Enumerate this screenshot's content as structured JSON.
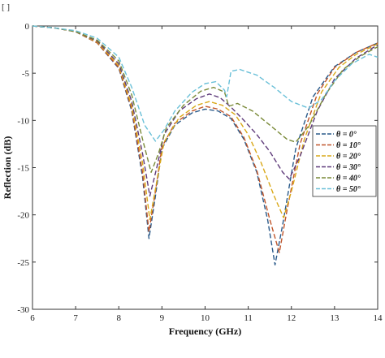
{
  "corner_mark": "[ ]",
  "chart_data": {
    "type": "line",
    "xlabel": "Frequency (GHz)",
    "ylabel": "Reflection (dB)",
    "xlim": [
      6,
      14
    ],
    "ylim": [
      -30,
      0
    ],
    "xticks": [
      6,
      7,
      8,
      9,
      10,
      11,
      12,
      13,
      14
    ],
    "yticks": [
      0,
      -5,
      -10,
      -15,
      -20,
      -25,
      -30
    ],
    "legend_position": "right",
    "grid": false,
    "series": [
      {
        "name": "θ = 0°",
        "color": "#2a5a8a",
        "points": [
          [
            6,
            0
          ],
          [
            6.5,
            -0.2
          ],
          [
            7,
            -0.6
          ],
          [
            7.5,
            -1.8
          ],
          [
            8,
            -4.5
          ],
          [
            8.3,
            -9
          ],
          [
            8.55,
            -16
          ],
          [
            8.7,
            -22.5
          ],
          [
            8.85,
            -18
          ],
          [
            9.0,
            -13
          ],
          [
            9.3,
            -10.5
          ],
          [
            9.7,
            -9.2
          ],
          [
            10.0,
            -8.8
          ],
          [
            10.3,
            -9
          ],
          [
            10.6,
            -9.8
          ],
          [
            10.9,
            -12
          ],
          [
            11.2,
            -15.5
          ],
          [
            11.45,
            -20.5
          ],
          [
            11.62,
            -25.3
          ],
          [
            11.8,
            -21
          ],
          [
            12.1,
            -13
          ],
          [
            12.5,
            -7.5
          ],
          [
            13,
            -4.3
          ],
          [
            13.5,
            -2.8
          ],
          [
            14,
            -1.8
          ]
        ]
      },
      {
        "name": "θ = 10°",
        "color": "#c0552a",
        "points": [
          [
            6,
            0
          ],
          [
            6.5,
            -0.2
          ],
          [
            7,
            -0.6
          ],
          [
            7.5,
            -1.8
          ],
          [
            8,
            -4.4
          ],
          [
            8.3,
            -8.8
          ],
          [
            8.55,
            -15.5
          ],
          [
            8.7,
            -21.8
          ],
          [
            8.85,
            -17.5
          ],
          [
            9.0,
            -12.8
          ],
          [
            9.3,
            -10.3
          ],
          [
            9.7,
            -9
          ],
          [
            10.0,
            -8.5
          ],
          [
            10.3,
            -8.8
          ],
          [
            10.6,
            -9.6
          ],
          [
            10.9,
            -11.8
          ],
          [
            11.2,
            -15.3
          ],
          [
            11.5,
            -20.5
          ],
          [
            11.72,
            -24
          ],
          [
            11.9,
            -19.5
          ],
          [
            12.2,
            -12.5
          ],
          [
            12.6,
            -7.2
          ],
          [
            13,
            -4.4
          ],
          [
            13.5,
            -2.8
          ],
          [
            14,
            -1.8
          ]
        ]
      },
      {
        "name": "θ = 20°",
        "color": "#d9a818",
        "points": [
          [
            6,
            0
          ],
          [
            6.5,
            -0.2
          ],
          [
            7,
            -0.6
          ],
          [
            7.5,
            -1.7
          ],
          [
            8,
            -4.2
          ],
          [
            8.3,
            -8.5
          ],
          [
            8.55,
            -14.5
          ],
          [
            8.72,
            -20.5
          ],
          [
            8.88,
            -16.5
          ],
          [
            9.05,
            -12.3
          ],
          [
            9.4,
            -9.7
          ],
          [
            9.8,
            -8.4
          ],
          [
            10.1,
            -8
          ],
          [
            10.4,
            -8.4
          ],
          [
            10.7,
            -9.4
          ],
          [
            11.0,
            -11.5
          ],
          [
            11.3,
            -14.5
          ],
          [
            11.6,
            -18
          ],
          [
            11.82,
            -20.3
          ],
          [
            12.0,
            -17.5
          ],
          [
            12.3,
            -12
          ],
          [
            12.7,
            -7
          ],
          [
            13.1,
            -4.4
          ],
          [
            13.5,
            -3
          ],
          [
            14,
            -1.9
          ]
        ]
      },
      {
        "name": "θ = 30°",
        "color": "#5e3a7a",
        "points": [
          [
            6,
            0
          ],
          [
            6.5,
            -0.2
          ],
          [
            7,
            -0.6
          ],
          [
            7.5,
            -1.6
          ],
          [
            8,
            -4
          ],
          [
            8.3,
            -8
          ],
          [
            8.55,
            -13.5
          ],
          [
            8.72,
            -18
          ],
          [
            8.88,
            -15
          ],
          [
            9.05,
            -11.5
          ],
          [
            9.4,
            -9
          ],
          [
            9.8,
            -7.7
          ],
          [
            10.1,
            -7.2
          ],
          [
            10.35,
            -7.6
          ],
          [
            10.6,
            -8.6
          ],
          [
            10.9,
            -10
          ],
          [
            11.2,
            -11.5
          ],
          [
            11.5,
            -13.3
          ],
          [
            11.8,
            -15.5
          ],
          [
            11.95,
            -16.2
          ],
          [
            12.2,
            -13.8
          ],
          [
            12.6,
            -9
          ],
          [
            13,
            -5.6
          ],
          [
            13.5,
            -3.4
          ],
          [
            14,
            -2
          ]
        ]
      },
      {
        "name": "θ = 40°",
        "color": "#7a8a38",
        "points": [
          [
            6,
            0
          ],
          [
            6.5,
            -0.2
          ],
          [
            7,
            -0.6
          ],
          [
            7.5,
            -1.5
          ],
          [
            8,
            -3.7
          ],
          [
            8.3,
            -7.3
          ],
          [
            8.55,
            -12
          ],
          [
            8.75,
            -15.5
          ],
          [
            8.92,
            -13.5
          ],
          [
            9.1,
            -10.8
          ],
          [
            9.5,
            -8.4
          ],
          [
            9.9,
            -6.9
          ],
          [
            10.2,
            -6.5
          ],
          [
            10.45,
            -7
          ],
          [
            10.55,
            -8.5
          ],
          [
            10.75,
            -8.2
          ],
          [
            11.1,
            -9
          ],
          [
            11.5,
            -10.5
          ],
          [
            11.9,
            -12
          ],
          [
            12.1,
            -12.3
          ],
          [
            12.4,
            -10.6
          ],
          [
            12.8,
            -7.2
          ],
          [
            13.2,
            -4.6
          ],
          [
            13.6,
            -3.2
          ],
          [
            14,
            -2.2
          ]
        ]
      },
      {
        "name": "θ = 50°",
        "color": "#6ac0d8",
        "points": [
          [
            6,
            0
          ],
          [
            6.5,
            -0.2
          ],
          [
            7,
            -0.5
          ],
          [
            7.5,
            -1.3
          ],
          [
            8,
            -3.3
          ],
          [
            8.3,
            -6.5
          ],
          [
            8.6,
            -10.5
          ],
          [
            8.85,
            -12.2
          ],
          [
            9.05,
            -11
          ],
          [
            9.3,
            -9
          ],
          [
            9.7,
            -7
          ],
          [
            10.0,
            -6.1
          ],
          [
            10.25,
            -5.9
          ],
          [
            10.45,
            -6.8
          ],
          [
            10.5,
            -7.5
          ],
          [
            10.6,
            -4.8
          ],
          [
            10.8,
            -4.6
          ],
          [
            11.2,
            -5.2
          ],
          [
            11.6,
            -6.5
          ],
          [
            12.0,
            -8
          ],
          [
            12.4,
            -8.7
          ],
          [
            12.7,
            -7.8
          ],
          [
            13.0,
            -5.8
          ],
          [
            13.4,
            -4
          ],
          [
            13.8,
            -3
          ],
          [
            14,
            -3.3
          ]
        ]
      }
    ]
  }
}
